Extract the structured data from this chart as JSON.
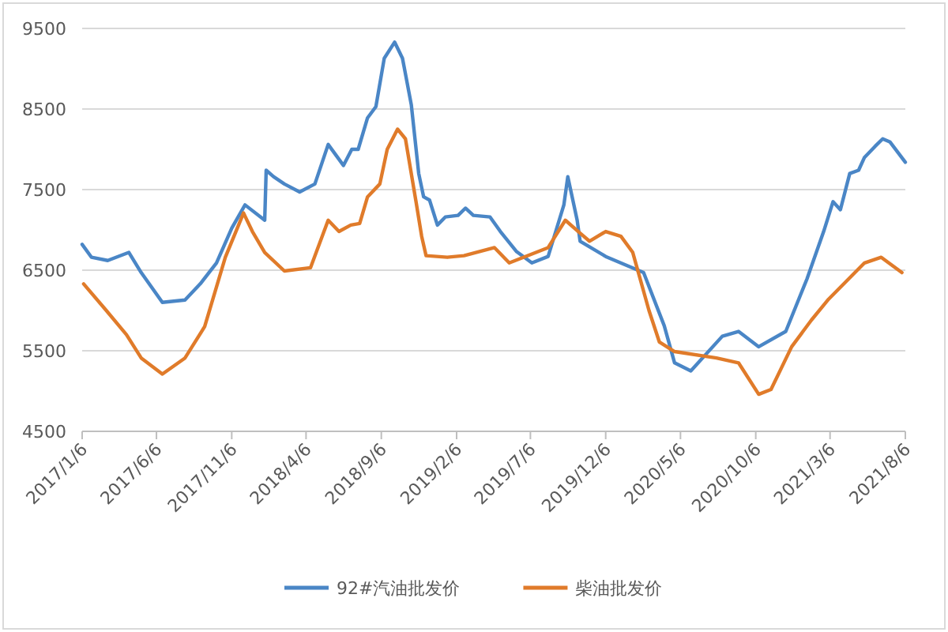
{
  "chart_data": {
    "type": "line",
    "x": [
      "2017-01-06",
      "2017-01-25",
      "2017-02-27",
      "2017-04-11",
      "2017-05-06",
      "2017-06-18",
      "2017-08-03",
      "2017-09-03",
      "2017-10-06",
      "2017-11-06",
      "2017-12-03",
      "2018-01-12",
      "2018-01-15",
      "2018-01-30",
      "2018-02-21",
      "2018-03-24",
      "2018-04-24",
      "2018-05-21",
      "2018-06-21",
      "2018-07-08",
      "2018-07-21",
      "2018-08-09",
      "2018-08-26",
      "2018-09-12",
      "2018-10-03",
      "2018-10-19",
      "2018-11-06",
      "2018-11-21",
      "2018-12-01",
      "2018-12-13",
      "2018-12-29",
      "2019-01-14",
      "2019-02-09",
      "2019-02-24",
      "2019-03-12",
      "2019-04-15",
      "2019-05-06",
      "2019-06-08",
      "2019-07-09",
      "2019-08-11",
      "2019-09-12",
      "2019-09-20",
      "2019-10-09",
      "2019-10-15",
      "2019-12-06",
      "2020-02-21",
      "2020-04-03",
      "2020-04-24",
      "2020-05-27",
      "2020-07-30",
      "2020-09-01",
      "2020-10-12",
      "2020-12-06",
      "2021-01-18",
      "2021-02-21",
      "2021-03-12",
      "2021-03-27",
      "2021-04-15",
      "2021-05-03",
      "2021-05-15",
      "2021-06-06",
      "2021-06-21",
      "2021-07-06",
      "2021-08-06"
    ],
    "series": [
      {
        "name": "92#汽油批发价",
        "color": "#4a86c6",
        "values": [
          6820,
          6660,
          6620,
          6720,
          6470,
          6100,
          6130,
          6330,
          6590,
          7020,
          7310,
          7120,
          7740,
          7660,
          7570,
          7470,
          7570,
          8060,
          7800,
          8000,
          8000,
          8390,
          8530,
          9130,
          9330,
          9130,
          8550,
          7700,
          7410,
          7370,
          7060,
          7160,
          7180,
          7270,
          7180,
          7160,
          6980,
          6730,
          6590,
          6670,
          7310,
          7660,
          7120,
          6860,
          6670,
          6470,
          5810,
          5350,
          5250,
          5680,
          5740,
          5550,
          5740,
          6390,
          6980,
          7350,
          7250,
          7700,
          7740,
          7900,
          8040,
          8130,
          8090,
          7840
        ]
      },
      {
        "name": "柴油批发价",
        "color": "#e07b2a",
        "x": [
          "2017-01-09",
          "2017-02-24",
          "2017-04-06",
          "2017-05-06",
          "2017-06-18",
          "2017-08-03",
          "2017-09-12",
          "2017-10-24",
          "2017-11-30",
          "2017-12-03",
          "2017-12-18",
          "2018-01-12",
          "2018-02-21",
          "2018-04-15",
          "2018-05-21",
          "2018-06-12",
          "2018-07-06",
          "2018-07-24",
          "2018-08-09",
          "2018-09-03",
          "2018-09-18",
          "2018-10-09",
          "2018-10-25",
          "2018-11-15",
          "2018-11-27",
          "2018-12-06",
          "2019-01-18",
          "2019-02-21",
          "2019-04-24",
          "2019-05-24",
          "2019-08-11",
          "2019-09-15",
          "2019-10-15",
          "2019-11-03",
          "2019-12-06",
          "2020-01-06",
          "2020-01-30",
          "2020-03-03",
          "2020-03-24",
          "2020-04-24",
          "2020-07-18",
          "2020-09-01",
          "2020-10-12",
          "2020-11-06",
          "2020-12-18",
          "2021-01-27",
          "2021-03-03",
          "2021-05-15",
          "2021-06-18",
          "2021-07-30"
        ],
        "values": [
          6330,
          6000,
          5700,
          5410,
          5210,
          5410,
          5800,
          6660,
          7210,
          7170,
          6980,
          6720,
          6490,
          6530,
          7120,
          6980,
          7060,
          7080,
          7410,
          7570,
          8000,
          8250,
          8130,
          7370,
          6920,
          6680,
          6660,
          6680,
          6780,
          6590,
          6780,
          7120,
          6960,
          6860,
          6980,
          6920,
          6720,
          6000,
          5610,
          5490,
          5410,
          5350,
          4960,
          5020,
          5550,
          5880,
          6140,
          6590,
          6660,
          6470
        ]
      }
    ],
    "xlim": [
      "2017-01-06",
      "2021-08-06"
    ],
    "xticks": [
      {
        "value": "2017-01-06",
        "label": "2017/1/6"
      },
      {
        "value": "2017-06-06",
        "label": "2017/6/6"
      },
      {
        "value": "2017-11-06",
        "label": "2017/11/6"
      },
      {
        "value": "2018-04-06",
        "label": "2018/4/6"
      },
      {
        "value": "2018-09-06",
        "label": "2018/9/6"
      },
      {
        "value": "2019-02-06",
        "label": "2019/2/6"
      },
      {
        "value": "2019-07-06",
        "label": "2019/7/6"
      },
      {
        "value": "2019-12-06",
        "label": "2019/12/6"
      },
      {
        "value": "2020-05-06",
        "label": "2020/5/6"
      },
      {
        "value": "2020-10-06",
        "label": "2020/10/6"
      },
      {
        "value": "2021-03-06",
        "label": "2021/3/6"
      },
      {
        "value": "2021-08-06",
        "label": "2021/8/6"
      }
    ],
    "ylim": [
      4500,
      9500
    ],
    "yticks": [
      4500,
      5500,
      6500,
      7500,
      8500,
      9500
    ],
    "grid": "y",
    "legend": "bottom",
    "marker": "none",
    "line_style": "solid"
  }
}
